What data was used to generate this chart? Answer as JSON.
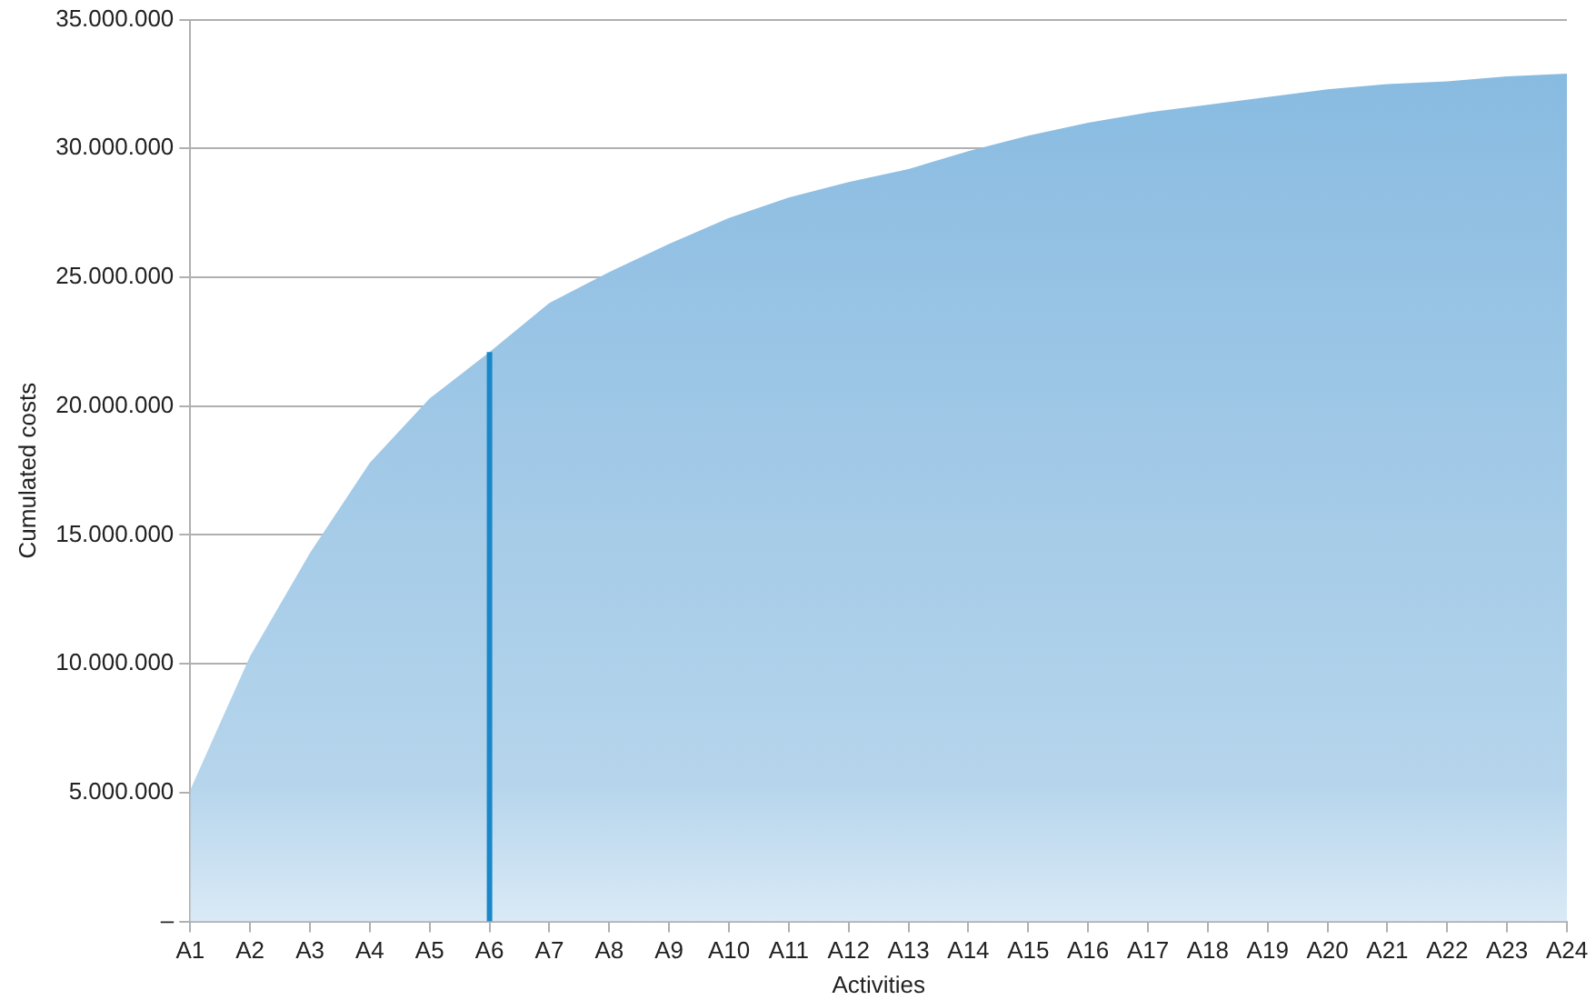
{
  "chart_data": {
    "type": "area",
    "xlabel": "Activities",
    "ylabel": "Cumulated costs",
    "categories": [
      "A1",
      "A2",
      "A3",
      "A4",
      "A5",
      "A6",
      "A7",
      "A8",
      "A9",
      "A10",
      "A11",
      "A12",
      "A13",
      "A14",
      "A15",
      "A16",
      "A17",
      "A18",
      "A19",
      "A20",
      "A21",
      "A22",
      "A23",
      "A24"
    ],
    "series": [
      {
        "color": "#85b9e0",
        "values": [
          5100000,
          10300000,
          14300000,
          17800000,
          20300000,
          22100000,
          24000000,
          25200000,
          26300000,
          27300000,
          28100000,
          28700000,
          29200000,
          29900000,
          30500000,
          31000000,
          31400000,
          31700000,
          32000000,
          32300000,
          32500000,
          32600000,
          32800000,
          32900000
        ]
      }
    ],
    "ylim": [
      0,
      35000000
    ],
    "yticks": [
      {
        "value": 0,
        "label": "–"
      },
      {
        "value": 5000000,
        "label": "5.000.000"
      },
      {
        "value": 10000000,
        "label": "10.000.000"
      },
      {
        "value": 15000000,
        "label": "15.000.000"
      },
      {
        "value": 20000000,
        "label": "20.000.000"
      },
      {
        "value": 25000000,
        "label": "25.000.000"
      },
      {
        "value": 30000000,
        "label": "30.000.000"
      },
      {
        "value": 35000000,
        "label": "35.000.000"
      }
    ],
    "ref_lines": [
      {
        "axis": "x",
        "value": "A6",
        "color": "#1a87c9"
      }
    ],
    "grid": "y",
    "legend": false
  }
}
